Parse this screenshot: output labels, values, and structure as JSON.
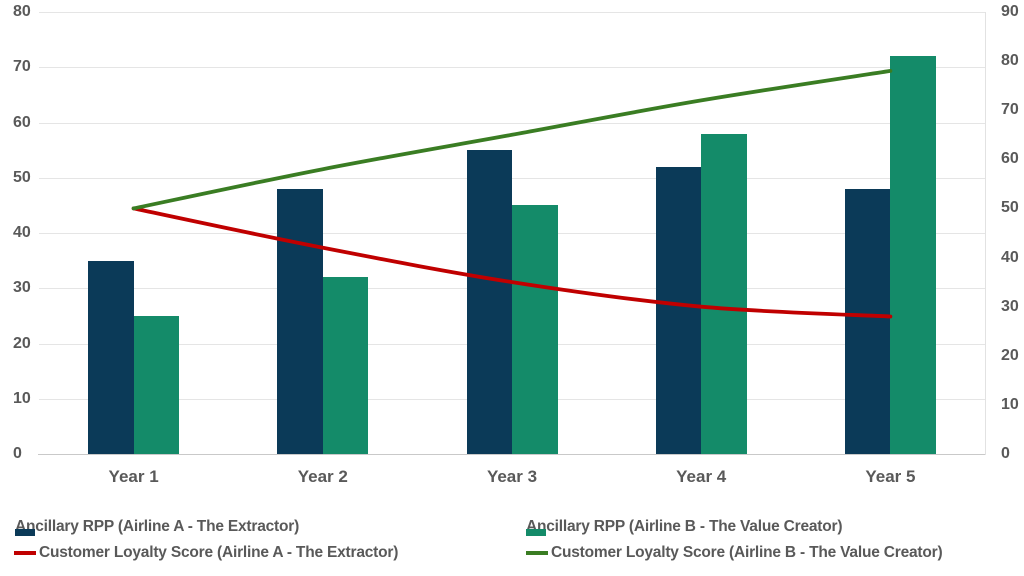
{
  "chart_data": {
    "type": "combo-bar-line",
    "categories": [
      "Year 1",
      "Year 2",
      "Year 3",
      "Year 4",
      "Year 5"
    ],
    "bar_series": [
      {
        "name": "Ancillary RPP (Airline A - The Extractor)",
        "color": "#0b3a58",
        "axis": "left",
        "values": [
          35,
          48,
          55,
          52,
          48
        ]
      },
      {
        "name": "Ancillary RPP (Airline B - The Value Creator)",
        "color": "#148b69",
        "axis": "left",
        "values": [
          25,
          32,
          45,
          58,
          72
        ]
      }
    ],
    "line_series": [
      {
        "name": "Customer Loyalty Score (Airline A - The Extractor)",
        "color": "#c00000",
        "axis": "right",
        "values": [
          50,
          42,
          35,
          30,
          28
        ]
      },
      {
        "name": "Customer Loyalty Score (Airline B - The Value Creator)",
        "color": "#3a7d23",
        "axis": "right",
        "values": [
          50,
          58,
          65,
          72,
          78
        ]
      }
    ],
    "left_axis": {
      "min": 0,
      "max": 80,
      "step": 10,
      "ticks": [
        "0",
        "10",
        "20",
        "30",
        "40",
        "50",
        "60",
        "70",
        "80"
      ]
    },
    "right_axis": {
      "min": 0,
      "max": 90,
      "step": 10,
      "ticks": [
        "0",
        "10",
        "20",
        "30",
        "40",
        "50",
        "60",
        "70",
        "80",
        "90"
      ]
    },
    "title": "",
    "xlabel": "",
    "ylabel": "",
    "grid": true,
    "legend_position": "bottom"
  },
  "colors": {
    "bar_a_navy": "#0b3a58",
    "bar_b_teal": "#148b69",
    "line_a_red": "#c00000",
    "line_b_green": "#3a7d23",
    "axis_text": "#595959",
    "gridline": "#e5e5e5"
  }
}
